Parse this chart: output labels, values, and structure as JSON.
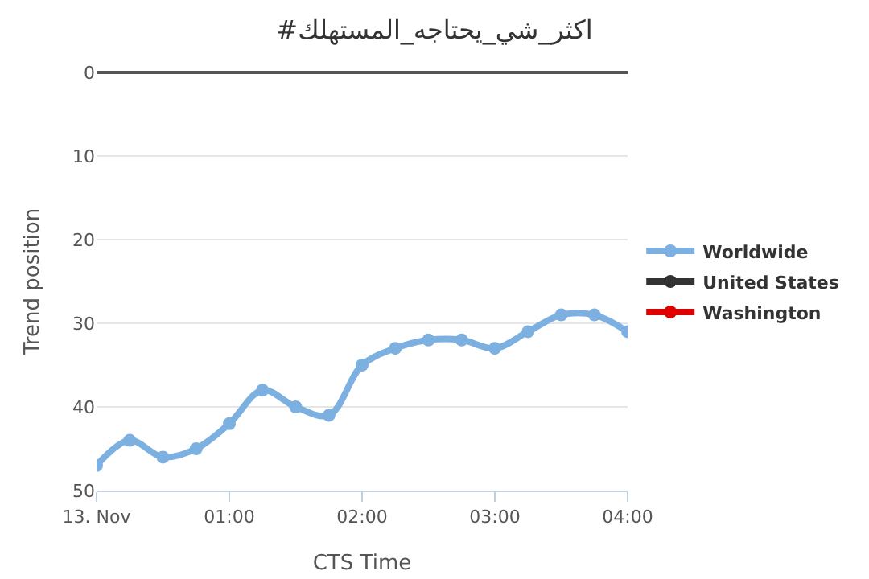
{
  "chart_data": {
    "type": "line",
    "title": "#اكثر_شي_يحتاجه_المستهلك",
    "xlabel": "CTS Time",
    "ylabel": "Trend position",
    "x": [
      0,
      0.25,
      0.5,
      0.75,
      1,
      1.25,
      1.5,
      1.75,
      2,
      2.25,
      2.5,
      2.75,
      3,
      3.25,
      3.5,
      3.75,
      4
    ],
    "series": [
      {
        "name": "Worldwide",
        "color": "#7cb0e0",
        "values": [
          47,
          44,
          46,
          45,
          42,
          38,
          40,
          41,
          35,
          33,
          32,
          32,
          33,
          31,
          29,
          29,
          31
        ]
      },
      {
        "name": "United States",
        "color": "#333333",
        "values": [
          null,
          null,
          null,
          null,
          null,
          null,
          null,
          null,
          null,
          null,
          null,
          null,
          null,
          null,
          null,
          null,
          null
        ]
      },
      {
        "name": "Washington",
        "color": "#e00000",
        "values": [
          null,
          null,
          null,
          null,
          null,
          null,
          null,
          null,
          null,
          null,
          null,
          null,
          null,
          null,
          null,
          null,
          null
        ]
      }
    ],
    "xlim": [
      0,
      4
    ],
    "xticks": [
      {
        "value": 0,
        "label": "13. Nov"
      },
      {
        "value": 1,
        "label": "01:00"
      },
      {
        "value": 2,
        "label": "02:00"
      },
      {
        "value": 3,
        "label": "03:00"
      },
      {
        "value": 4,
        "label": "04:00"
      }
    ],
    "ylim": [
      50,
      0
    ],
    "yticks": [
      0,
      10,
      20,
      30,
      40,
      50
    ],
    "grid": "y",
    "legend": "right",
    "marker": "circle",
    "line_style": "solid"
  }
}
